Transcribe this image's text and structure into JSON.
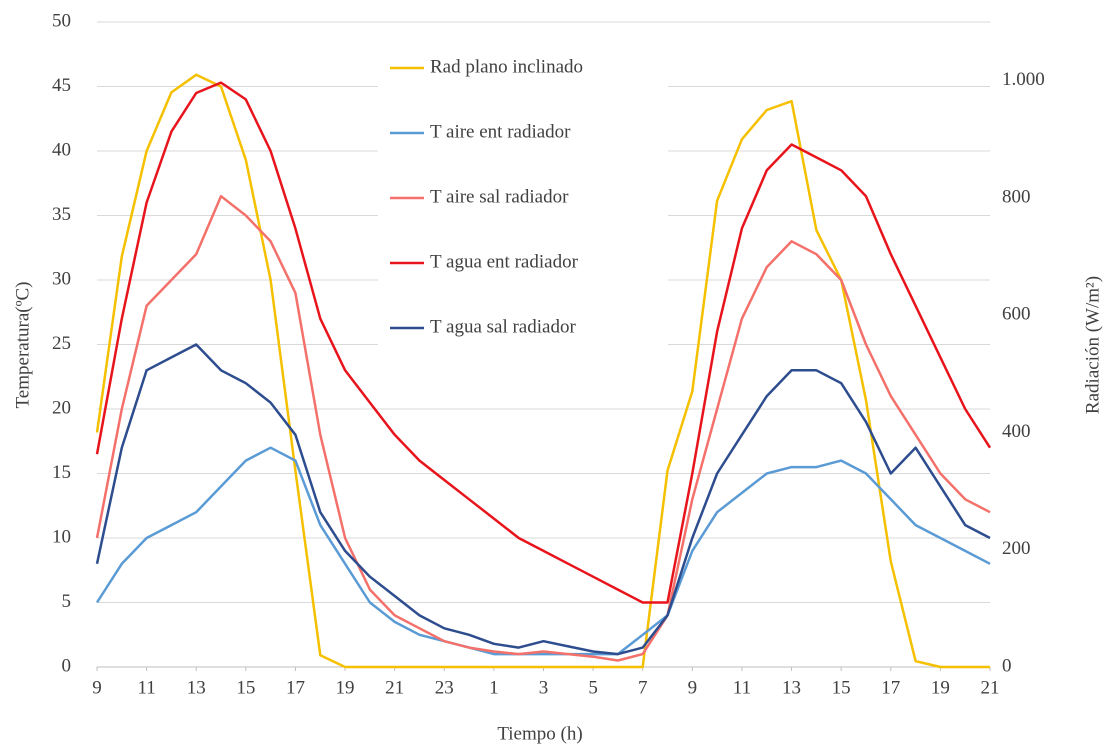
{
  "chart_data": {
    "type": "line",
    "xlabel": "Tiempo (h)",
    "ylabel": "Temperatura(ºC)",
    "y2label": "Radiación (W/m²)",
    "x": [
      9,
      10,
      11,
      12,
      13,
      14,
      15,
      16,
      17,
      18,
      19,
      20,
      21,
      22,
      23,
      24,
      25,
      26,
      27,
      28,
      29,
      30,
      31,
      32,
      33,
      34,
      35,
      36,
      37,
      38,
      39,
      40,
      41,
      42,
      43,
      44,
      45
    ],
    "xlim": [
      9,
      45
    ],
    "xticks": [
      9,
      11,
      13,
      15,
      17,
      19,
      21,
      23,
      {
        "value": 25,
        "label": "1"
      },
      {
        "value": 27,
        "label": "3"
      },
      {
        "value": 29,
        "label": "5"
      },
      {
        "value": 31,
        "label": "7"
      },
      {
        "value": 33,
        "label": "9"
      },
      {
        "value": 35,
        "label": "11"
      },
      {
        "value": 37,
        "label": "13"
      },
      {
        "value": 39,
        "label": "15"
      },
      {
        "value": 41,
        "label": "17"
      },
      {
        "value": 43,
        "label": "19"
      },
      {
        "value": 45,
        "label": "21"
      }
    ],
    "ylim": [
      0,
      50
    ],
    "yticks": [
      0,
      5,
      10,
      15,
      20,
      25,
      30,
      35,
      40,
      45,
      50
    ],
    "y2lim": [
      0,
      1100
    ],
    "y2ticks": [
      0,
      200,
      400,
      600,
      800,
      {
        "value": 1000,
        "label": "1.000"
      }
    ],
    "grid": true,
    "legend": "upper-center",
    "series": [
      {
        "name": "Rad plano inclinado",
        "color": "#f5c000",
        "axis": "y2",
        "values": [
          400,
          700,
          880,
          980,
          1010,
          990,
          865,
          660,
          335,
          20,
          0,
          0,
          0,
          0,
          0,
          0,
          0,
          0,
          0,
          0,
          0,
          0,
          0,
          335,
          470,
          795,
          900,
          950,
          965,
          745,
          660,
          455,
          180,
          10,
          0,
          0,
          0
        ]
      },
      {
        "name": "T aire ent radiador",
        "color": "#5b9bd5",
        "values": [
          5,
          8,
          10,
          11,
          12,
          14,
          16,
          17,
          16,
          11,
          8,
          5,
          3.5,
          2.5,
          2,
          1.5,
          1,
          1,
          1,
          1,
          1,
          1,
          2.5,
          4,
          9,
          12,
          13.5,
          15,
          15.5,
          15.5,
          16,
          15,
          13,
          11,
          10,
          9,
          8
        ]
      },
      {
        "name": "T aire sal radiador",
        "color": "#f4716b",
        "values": [
          10,
          20,
          28,
          30,
          32,
          36.5,
          35,
          33,
          29,
          18,
          10,
          6,
          4,
          3,
          2,
          1.5,
          1.2,
          1,
          1.2,
          1,
          0.8,
          0.5,
          1,
          4,
          13,
          20,
          27,
          31,
          33,
          32,
          30,
          25,
          21,
          18,
          15,
          13,
          12
        ]
      },
      {
        "name": "T agua ent  radiador",
        "color": "#e8141c",
        "values": [
          16.5,
          27,
          36,
          41.5,
          44.5,
          45.3,
          44,
          40,
          34,
          27,
          23,
          20.5,
          18,
          16,
          14.5,
          13,
          11.5,
          10,
          9,
          8,
          7,
          6,
          5,
          5,
          15,
          26,
          34,
          38.5,
          40.5,
          39.5,
          38.5,
          36.5,
          32,
          28,
          24,
          20,
          17
        ]
      },
      {
        "name": "T agua sal radiador",
        "color": "#2e4d8f",
        "values": [
          8,
          17,
          23,
          24,
          25,
          23,
          22,
          20.5,
          18,
          12,
          9,
          7,
          5.5,
          4,
          3,
          2.5,
          1.8,
          1.5,
          2,
          1.6,
          1.2,
          1,
          1.5,
          4,
          10,
          15,
          18,
          21,
          23,
          23,
          22,
          19,
          15,
          17,
          14,
          11,
          10
        ]
      }
    ]
  }
}
